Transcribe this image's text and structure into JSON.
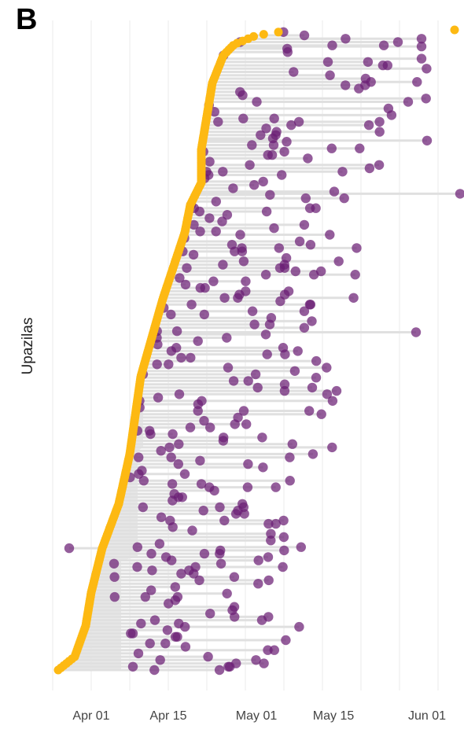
{
  "panel_label": "B",
  "chart_data": {
    "type": "scatter",
    "title": "",
    "xlabel": "",
    "ylabel": "Upazilas",
    "x_ticks": [
      "Apr 01",
      "Apr 15",
      "May 01",
      "May 15",
      "Jun 01"
    ],
    "x_tick_dates": [
      "2020-04-01",
      "2020-04-15",
      "2020-05-01",
      "2020-05-15",
      "2020-06-01"
    ],
    "xlim": [
      "2020-03-24",
      "2020-06-07"
    ],
    "grid": true,
    "legend": "none",
    "colors": {
      "first_case": "#FDB913",
      "subsequent_case": "#6B1F74",
      "segment": "#e0e0e0",
      "shade": "#e3e3e3",
      "grid": "#ebebeb"
    },
    "series": [
      {
        "role": "first_case",
        "description_points": [
          [
            "2020-03-26",
            0
          ],
          [
            "2020-03-29",
            12
          ],
          [
            "2020-03-31",
            40
          ],
          [
            "2020-04-01",
            70
          ],
          [
            "2020-04-03",
            110
          ],
          [
            "2020-04-06",
            150
          ],
          [
            "2020-04-08",
            195
          ],
          [
            "2020-04-09",
            230
          ],
          [
            "2020-04-10",
            265
          ],
          [
            "2020-04-12",
            300
          ],
          [
            "2020-04-14",
            335
          ],
          [
            "2020-04-16",
            365
          ],
          [
            "2020-04-18",
            395
          ],
          [
            "2020-04-19",
            420
          ],
          [
            "2020-04-21",
            440
          ],
          [
            "2020-04-21",
            470
          ],
          [
            "2020-04-22",
            500
          ],
          [
            "2020-04-23",
            530
          ],
          [
            "2020-04-25",
            555
          ],
          [
            "2020-04-27",
            565
          ],
          [
            "2020-05-01",
            573
          ],
          [
            "2020-05-05",
            576
          ],
          [
            "2020-06-06",
            578
          ]
        ]
      }
    ],
    "scatter_clusters": [
      {
        "row_range": [
          0,
          100
        ],
        "x_range": [
          "2020-04-05",
          "2020-05-10"
        ]
      },
      {
        "row_range": [
          100,
          200
        ],
        "x_range": [
          "2020-04-08",
          "2020-05-12"
        ]
      },
      {
        "row_range": [
          200,
          300
        ],
        "x_range": [
          "2020-04-09",
          "2020-05-16"
        ]
      },
      {
        "row_range": [
          300,
          400
        ],
        "x_range": [
          "2020-04-12",
          "2020-05-20"
        ]
      },
      {
        "row_range": [
          400,
          500
        ],
        "x_range": [
          "2020-04-13",
          "2020-05-25"
        ]
      },
      {
        "row_range": [
          500,
          578
        ],
        "x_range": [
          "2020-04-20",
          "2020-06-03"
        ]
      }
    ],
    "outliers": [
      [
        "2020-03-28",
        110
      ],
      [
        "2020-05-30",
        305
      ],
      [
        "2020-06-07",
        430
      ],
      [
        "2020-06-01",
        478
      ],
      [
        "2020-05-31",
        563
      ],
      [
        "2020-05-31",
        570
      ]
    ]
  }
}
